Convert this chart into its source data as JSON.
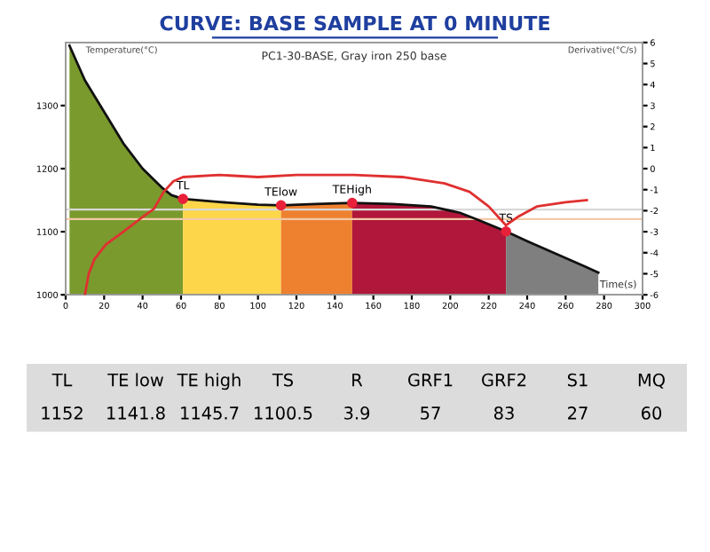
{
  "chart_data": {
    "type": "line",
    "title": "CURVE: BASE SAMPLE AT 0 MINUTE",
    "subtitle": "PC1-30-BASE, Gray iron 250 base",
    "xlabel": "Time(s)",
    "ylabel": "Temperature(°C)",
    "y2label": "Derivative(°C/s)",
    "xlim": [
      0,
      300
    ],
    "xticks": [
      0,
      20,
      40,
      60,
      80,
      100,
      120,
      140,
      160,
      180,
      200,
      220,
      240,
      260,
      280,
      300
    ],
    "ylim": [
      1000,
      1400
    ],
    "yticks": [
      1000,
      1100,
      1200,
      1300
    ],
    "y2lim": [
      -6,
      6
    ],
    "y2ticks": [
      -6,
      -5,
      -4,
      -3,
      -2,
      -1,
      0,
      1,
      2,
      3,
      4,
      5,
      6
    ],
    "grid": false,
    "legend": false,
    "series": [
      {
        "type": "area",
        "color": "#7a9a2e",
        "x": [
          2,
          10,
          20,
          30,
          40,
          50,
          55,
          61
        ],
        "values": [
          1395,
          1340,
          1290,
          1240,
          1200,
          1170,
          1158,
          1152
        ]
      },
      {
        "type": "area",
        "color": "#fdd64a",
        "x": [
          61,
          80,
          100,
          112
        ],
        "values": [
          1152,
          1147,
          1143,
          1141.8
        ]
      },
      {
        "type": "area",
        "color": "#ee8130",
        "x": [
          112,
          130,
          149
        ],
        "values": [
          1141.8,
          1144,
          1145.7
        ]
      },
      {
        "type": "area",
        "color": "#b0173a",
        "x": [
          149,
          170,
          190,
          205,
          215,
          229
        ],
        "values": [
          1145.7,
          1144,
          1140,
          1130,
          1118,
          1100.5
        ]
      },
      {
        "type": "area",
        "color": "#7f7f7f",
        "x": [
          229,
          240,
          255,
          270,
          277
        ],
        "values": [
          1100.5,
          1085,
          1065,
          1045,
          1035
        ]
      },
      {
        "color": "#111111",
        "x": [
          2,
          10,
          20,
          30,
          40,
          50,
          55,
          61,
          80,
          100,
          112,
          130,
          149,
          170,
          190,
          205,
          215,
          229,
          240,
          255,
          270,
          277
        ],
        "values": [
          1395,
          1340,
          1290,
          1240,
          1200,
          1170,
          1158,
          1152,
          1147,
          1143,
          1141.8,
          1144,
          1145.7,
          1144,
          1140,
          1130,
          1118,
          1100.5,
          1085,
          1065,
          1045,
          1035
        ]
      },
      {
        "type": "line",
        "axis": "y2",
        "color": "#e03030",
        "x": [
          10,
          12,
          15,
          21,
          30,
          40,
          46,
          51,
          56,
          61,
          80,
          100,
          120,
          150,
          175,
          197,
          210,
          220,
          229,
          235,
          245,
          260,
          271
        ],
        "values": [
          -6,
          -5,
          -4.3,
          -3.6,
          -3.0,
          -2.3,
          -1.9,
          -1.1,
          -0.6,
          -0.4,
          -0.3,
          -0.4,
          -0.3,
          -0.3,
          -0.4,
          -0.7,
          -1.1,
          -1.8,
          -2.7,
          -2.3,
          -1.8,
          -1.6,
          -1.5
        ]
      },
      {
        "type": "scatter",
        "color": "#e8203a",
        "x": [
          61,
          112,
          149,
          229
        ],
        "values": [
          1152,
          1141.8,
          1145.7,
          1100.5
        ]
      }
    ],
    "ref_lines": [
      {
        "axis": "y",
        "value": 1135,
        "color": "#d8d8d8"
      },
      {
        "axis": "y",
        "value": 1120,
        "color": "#f3c9a8"
      }
    ],
    "annotations": [
      {
        "text": "TL",
        "x": 61,
        "y": 1152
      },
      {
        "text": "TElow",
        "x": 112,
        "y": 1141.8
      },
      {
        "text": "TEHigh",
        "x": 149,
        "y": 1145.7
      },
      {
        "text": "TS",
        "x": 229,
        "y": 1100.5
      },
      "TL",
      "TE low",
      "TE high",
      "TS",
      "R",
      "GRF1",
      "GRF2",
      "S1",
      "MQ",
      "1152",
      "1141.8",
      "1145.7",
      "1100.5",
      "3.9",
      "57",
      "83",
      "27",
      "60"
    ]
  }
}
